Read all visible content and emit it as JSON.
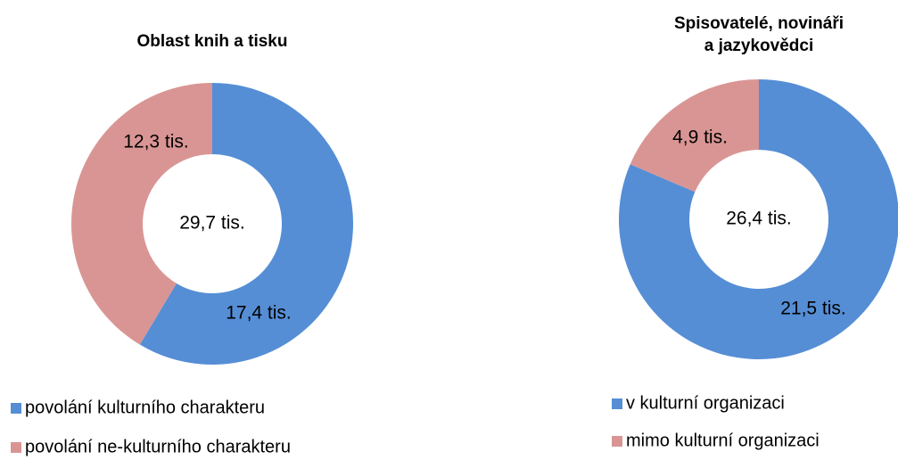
{
  "chart_data": [
    {
      "type": "donut",
      "title": [
        "Oblast knih a tisku"
      ],
      "center_label": "29,7 tis.",
      "categories": [
        "povolání kulturního charakteru",
        "povolání ne-kulturního charakteru"
      ],
      "values": [
        17.4,
        12.3
      ],
      "value_labels": [
        "17,4 tis.",
        "12,3 tis."
      ],
      "colors": [
        "#558ed5",
        "#d99594"
      ]
    },
    {
      "type": "donut",
      "title": [
        "Spisovatelé, novináři",
        "a  jazykovědci"
      ],
      "center_label": "26,4 tis.",
      "categories": [
        "v kulturní organizaci",
        "mimo kulturní organizaci"
      ],
      "values": [
        21.5,
        4.9
      ],
      "value_labels": [
        "21,5 tis.",
        "4,9 tis."
      ],
      "colors": [
        "#558ed5",
        "#d99594"
      ]
    }
  ]
}
